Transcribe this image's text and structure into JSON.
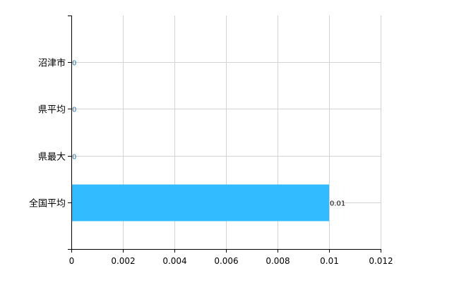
{
  "chart_data": {
    "type": "bar",
    "orientation": "horizontal",
    "categories": [
      "沼津市",
      "県平均",
      "県最大",
      "全国平均"
    ],
    "values": [
      0,
      0,
      0,
      0.01
    ],
    "data_labels": [
      "0",
      "0",
      "0",
      "0.01"
    ],
    "title": "",
    "xlabel": "",
    "ylabel": "",
    "xlim": [
      0,
      0.012
    ],
    "x_ticks": [
      "0",
      "0.002",
      "0.004",
      "0.006",
      "0.008",
      "0.01",
      "0.012"
    ],
    "grid": true,
    "legend": "none",
    "colors": {
      "bar": "#33bbff",
      "grid": "#d3d3d3",
      "zero_label": "#1f6fbf",
      "label": "#000000"
    }
  }
}
